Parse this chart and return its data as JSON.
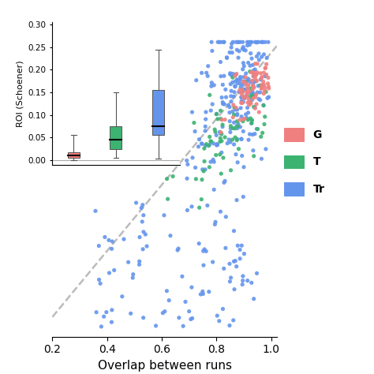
{
  "xlabel": "Overlap between runs",
  "ylabel": "ROI (Schoener)",
  "colors": {
    "red": "#F08080",
    "green": "#3CB371",
    "blue": "#6495ED"
  },
  "legend_labels": [
    "G",
    "T",
    "Tr"
  ],
  "box_red": {
    "x": 1,
    "median": 0.01,
    "q1": 0.005,
    "q3": 0.018,
    "whisker_low": 0.0,
    "whisker_high": 0.055
  },
  "box_green": {
    "x": 2,
    "median": 0.045,
    "q1": 0.025,
    "q3": 0.075,
    "whisker_low": 0.005,
    "whisker_high": 0.15
  },
  "box_blue": {
    "x": 3,
    "median": 0.075,
    "q1": 0.055,
    "q3": 0.155,
    "whisker_low": 0.003,
    "whisker_high": 0.245
  },
  "seed": 42,
  "n_red": 80,
  "n_green": 70,
  "n_blue": 320
}
